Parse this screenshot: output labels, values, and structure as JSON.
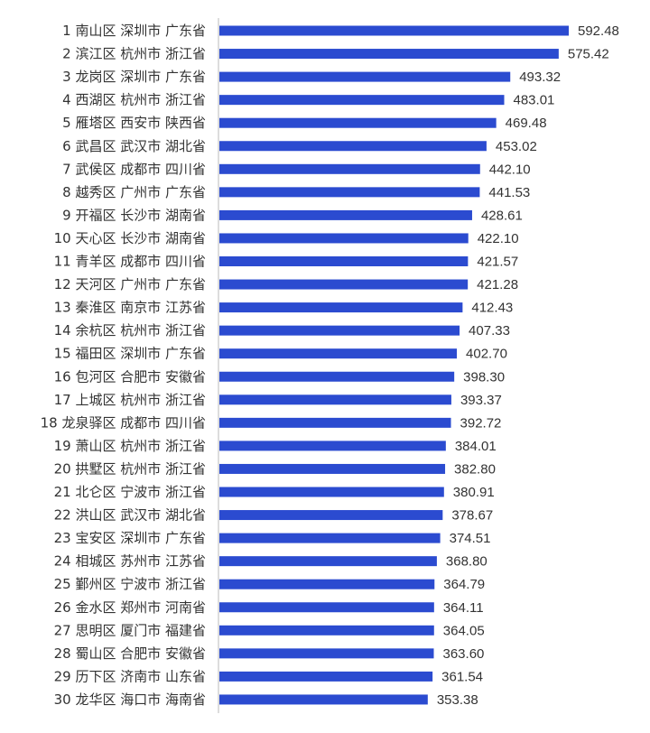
{
  "chart_data": {
    "type": "bar",
    "orientation": "horizontal",
    "title": "",
    "xlabel": "",
    "ylabel": "",
    "xlim": [
      0,
      592.48
    ],
    "grid": false,
    "legend": "none",
    "bar_color": "#2B4BD0",
    "axis_color": "#BBBBBB",
    "categories": [
      "1 南山区 深圳市 广东省",
      "2 滨江区 杭州市 浙江省",
      "3 龙岗区 深圳市 广东省",
      "4 西湖区 杭州市 浙江省",
      "5 雁塔区 西安市 陕西省",
      "6 武昌区 武汉市 湖北省",
      "7 武侯区 成都市 四川省",
      "8 越秀区 广州市 广东省",
      "9 开福区 长沙市 湖南省",
      "10 天心区 长沙市 湖南省",
      "11 青羊区 成都市 四川省",
      "12 天河区 广州市 广东省",
      "13 秦淮区 南京市 江苏省",
      "14 余杭区 杭州市 浙江省",
      "15 福田区 深圳市 广东省",
      "16 包河区 合肥市 安徽省",
      "17 上城区 杭州市 浙江省",
      "18 龙泉驿区 成都市 四川省",
      "19 萧山区 杭州市 浙江省",
      "20 拱墅区 杭州市 浙江省",
      "21 北仑区 宁波市 浙江省",
      "22 洪山区 武汉市 湖北省",
      "23 宝安区 深圳市 广东省",
      "24 相城区 苏州市 江苏省",
      "25 鄞州区 宁波市 浙江省",
      "26 金水区 郑州市 河南省",
      "27 思明区 厦门市 福建省",
      "28 蜀山区 合肥市 安徽省",
      "29 历下区 济南市 山东省",
      "30 龙华区 海口市 海南省"
    ],
    "values": [
      592.48,
      575.42,
      493.32,
      483.01,
      469.48,
      453.02,
      442.1,
      441.53,
      428.61,
      422.1,
      421.57,
      421.28,
      412.43,
      407.33,
      402.7,
      398.3,
      393.37,
      392.72,
      384.01,
      382.8,
      380.91,
      378.67,
      374.51,
      368.8,
      364.79,
      364.11,
      364.05,
      363.6,
      361.54,
      353.38
    ],
    "value_labels": [
      "592.48",
      "575.42",
      "493.32",
      "483.01",
      "469.48",
      "453.02",
      "442.10",
      "441.53",
      "428.61",
      "422.10",
      "421.57",
      "421.28",
      "412.43",
      "407.33",
      "402.70",
      "398.30",
      "393.37",
      "392.72",
      "384.01",
      "382.80",
      "380.91",
      "378.67",
      "374.51",
      "368.80",
      "364.79",
      "364.11",
      "364.05",
      "363.60",
      "361.54",
      "353.38"
    ]
  }
}
